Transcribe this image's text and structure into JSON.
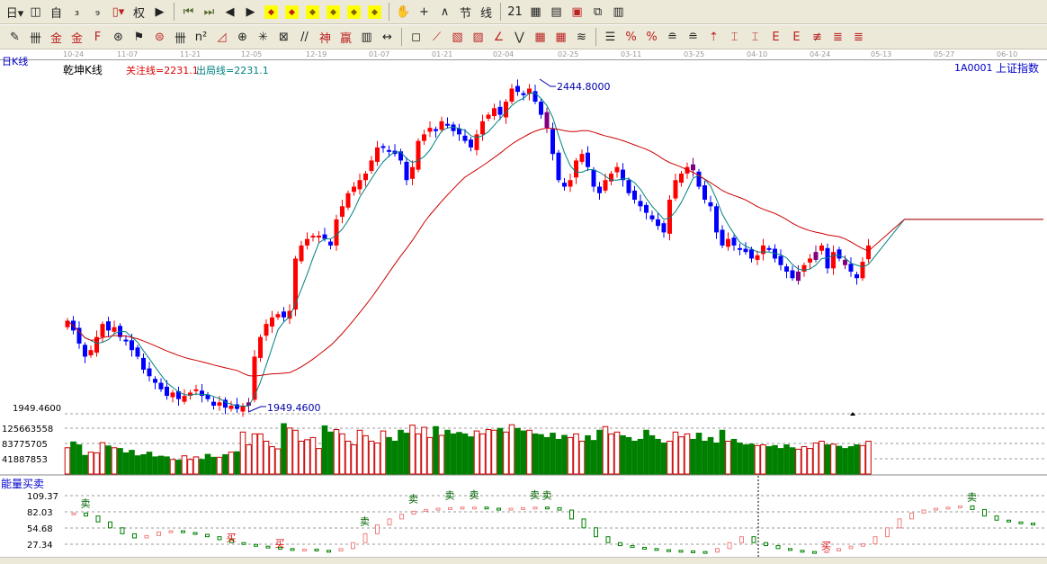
{
  "toolbar": {
    "row1": [
      {
        "icon": "period-selector",
        "glyph": "日▾"
      },
      {
        "icon": "history-icon",
        "glyph": "◫"
      },
      {
        "icon": "self-select-icon",
        "glyph": "自"
      },
      {
        "icon": "indicator-icon",
        "glyph": "₃"
      },
      {
        "icon": "indicator9-icon",
        "glyph": "₉"
      },
      {
        "icon": "candle-type-icon",
        "glyph": "▯▾"
      },
      {
        "icon": "weight-icon",
        "glyph": "权"
      },
      {
        "icon": "flag-icon",
        "glyph": "▶"
      },
      {
        "icon": "first-icon",
        "glyph": "⏮"
      },
      {
        "icon": "last-icon",
        "glyph": "⏭"
      },
      {
        "icon": "left-icon",
        "glyph": "◀"
      },
      {
        "icon": "right-icon",
        "glyph": "▶"
      },
      {
        "icon": "move-left-icon",
        "glyph": "◆"
      },
      {
        "icon": "move-right-icon",
        "glyph": "◆"
      },
      {
        "icon": "zoom-h-icon",
        "glyph": "◆"
      },
      {
        "icon": "zoom-in-icon",
        "glyph": "◆"
      },
      {
        "icon": "zoom-out-icon",
        "glyph": "◆"
      },
      {
        "icon": "zoom-v-icon",
        "glyph": "◆"
      },
      {
        "icon": "hand-icon",
        "glyph": "✋"
      },
      {
        "icon": "crosshair-icon",
        "glyph": "+"
      },
      {
        "icon": "draw-icon",
        "glyph": "∧"
      },
      {
        "icon": "section-icon",
        "glyph": "节"
      },
      {
        "icon": "chart-icon",
        "glyph": "线"
      },
      {
        "icon": "calendar-icon",
        "glyph": "21"
      },
      {
        "icon": "calculator-icon",
        "glyph": "▦"
      },
      {
        "icon": "notes-icon",
        "glyph": "▤"
      },
      {
        "icon": "save-icon",
        "glyph": "▣"
      },
      {
        "icon": "network-icon",
        "glyph": "⧉"
      },
      {
        "icon": "print-icon",
        "glyph": "▥"
      }
    ],
    "row2": [
      {
        "icon": "pen-icon",
        "glyph": "✎"
      },
      {
        "icon": "grid-icon",
        "glyph": "卌"
      },
      {
        "icon": "gold-icon",
        "glyph": "金"
      },
      {
        "icon": "gold2-icon",
        "glyph": "金"
      },
      {
        "icon": "f-line-icon",
        "glyph": "F"
      },
      {
        "icon": "spiral-icon",
        "glyph": "⊛"
      },
      {
        "icon": "marker-icon",
        "glyph": "⚑"
      },
      {
        "icon": "circle-icon",
        "glyph": "⊜"
      },
      {
        "icon": "lines-icon",
        "glyph": "卌"
      },
      {
        "icon": "n2-icon",
        "glyph": "n²"
      },
      {
        "icon": "angle-icon",
        "glyph": "◿"
      },
      {
        "icon": "target-icon",
        "glyph": "⊕"
      },
      {
        "icon": "star-icon",
        "glyph": "✳"
      },
      {
        "icon": "box-icon",
        "glyph": "⊠"
      },
      {
        "icon": "parallel-icon",
        "glyph": "//"
      },
      {
        "icon": "god-icon",
        "glyph": "神"
      },
      {
        "icon": "win-icon",
        "glyph": "赢"
      },
      {
        "icon": "ruler-icon",
        "glyph": "▥"
      },
      {
        "icon": "span-icon",
        "glyph": "↔"
      },
      {
        "icon": "rect-icon",
        "glyph": "◻"
      },
      {
        "icon": "fan-icon",
        "glyph": "⟋"
      },
      {
        "icon": "gann-icon",
        "glyph": "▧"
      },
      {
        "icon": "gann2-icon",
        "glyph": "▨"
      },
      {
        "icon": "angle2-icon",
        "glyph": "∠"
      },
      {
        "icon": "zigzag-icon",
        "glyph": "⋁"
      },
      {
        "icon": "table-icon",
        "glyph": "▦"
      },
      {
        "icon": "table2-icon",
        "glyph": "▦"
      },
      {
        "icon": "lines2-icon",
        "glyph": "≋"
      },
      {
        "icon": "list-icon",
        "glyph": "☰"
      },
      {
        "icon": "percent-icon",
        "glyph": "%"
      },
      {
        "icon": "percent2-icon",
        "glyph": "%"
      },
      {
        "icon": "equal-icon",
        "glyph": "≘"
      },
      {
        "icon": "equal2-icon",
        "glyph": "≘"
      },
      {
        "icon": "arrow-icon",
        "glyph": "⇡"
      },
      {
        "icon": "level-icon",
        "glyph": "⌶"
      },
      {
        "icon": "level2-icon",
        "glyph": "⌶"
      },
      {
        "icon": "e-icon",
        "glyph": "E"
      },
      {
        "icon": "e2-icon",
        "glyph": "E"
      },
      {
        "icon": "hit-icon",
        "glyph": "≢"
      },
      {
        "icon": "hit2-icon",
        "glyph": "≣"
      },
      {
        "icon": "hit3-icon",
        "glyph": "≣"
      }
    ]
  },
  "header": {
    "period": "日K线",
    "indicator": "乾坤K线",
    "focus_line": "关注线=2231.1",
    "exit_line": "出局线=2231.1",
    "code": "1A0001",
    "name": "上证指数"
  },
  "date_ticks": [
    "10-24",
    "11-07",
    "11-21",
    "12-05",
    "12-19",
    "01-07",
    "01-21",
    "02-04",
    "02-25",
    "03-11",
    "03-25",
    "04-10",
    "04-24",
    "05-13",
    "05-27",
    "06-10"
  ],
  "colors": {
    "up": "#ff0000",
    "down": "#0000ff",
    "signal": "#800080",
    "ma_fast": "#008080",
    "ma_slow": "#cc0000",
    "vol_up": "#cc0000",
    "vol_down": "#008000"
  },
  "chart_data": {
    "type": "candlestick",
    "price_axis": {
      "low_label": "1949.4600",
      "high_label": "2444.8000",
      "low": 1949.46,
      "high": 2444.8
    },
    "closes": [
      2085,
      2070,
      2050,
      2030,
      2040,
      2060,
      2080,
      2070,
      2075,
      2060,
      2055,
      2040,
      2030,
      2010,
      2000,
      1990,
      1980,
      1970,
      1975,
      1965,
      1970,
      1975,
      1980,
      1970,
      1965,
      1955,
      1960,
      1952,
      1955,
      1950,
      1955,
      1960,
      2030,
      2060,
      2080,
      2090,
      2095,
      2090,
      2100,
      2180,
      2200,
      2210,
      2215,
      2215,
      2210,
      2200,
      2240,
      2260,
      2280,
      2290,
      2300,
      2310,
      2330,
      2350,
      2350,
      2345,
      2340,
      2330,
      2300,
      2320,
      2360,
      2370,
      2380,
      2375,
      2390,
      2385,
      2375,
      2370,
      2360,
      2350,
      2370,
      2390,
      2400,
      2410,
      2400,
      2420,
      2440,
      2435,
      2430,
      2440,
      2420,
      2400,
      2380,
      2340,
      2300,
      2290,
      2300,
      2330,
      2340,
      2320,
      2290,
      2280,
      2300,
      2310,
      2320,
      2300,
      2280,
      2270,
      2260,
      2250,
      2240,
      2230,
      2220,
      2270,
      2300,
      2310,
      2320,
      2315,
      2290,
      2270,
      2260,
      2220,
      2200,
      2210,
      2200,
      2195,
      2190,
      2180,
      2185,
      2200,
      2195,
      2180,
      2170,
      2160,
      2150,
      2160,
      2170,
      2180,
      2190,
      2200,
      2165,
      2190,
      2180,
      2170,
      2160,
      2150,
      2175,
      2200
    ],
    "volume_axis": [
      "125663558",
      "83775705",
      "41887853"
    ],
    "volume": [
      72000000.0,
      88000000.0,
      80000000.0,
      51000000.0,
      60000000.0,
      58000000.0,
      86000000.0,
      77000000.0,
      72000000.0,
      70000000.0,
      58000000.0,
      65000000.0,
      50000000.0,
      53000000.0,
      60000000.0,
      47000000.0,
      49000000.0,
      47000000.0,
      40000000.0,
      38000000.0,
      50000000.0,
      40000000.0,
      47000000.0,
      40000000.0,
      54000000.0,
      46000000.0,
      46000000.0,
      53000000.0,
      60000000.0,
      61000000.0,
      115000000.0,
      80000000.0,
      110000000.0,
      110000000.0,
      90000000.0,
      75000000.0,
      69000000.0,
      138000000.0,
      126000000.0,
      120000000.0,
      90000000.0,
      94000000.0,
      100000000.0,
      70000000.0,
      132000000.0,
      115000000.0,
      122000000.0,
      110000000.0,
      90000000.0,
      80000000.0,
      120000000.0,
      105000000.0,
      90000000.0,
      85000000.0,
      118000000.0,
      100000000.0,
      90000000.0,
      120000000.0,
      112000000.0,
      134000000.0,
      110000000.0,
      128000000.0,
      100000000.0,
      130000000.0,
      106000000.0,
      120000000.0,
      110000000.0,
      114000000.0,
      110000000.0,
      102000000.0,
      118000000.0,
      110000000.0,
      122000000.0,
      120000000.0,
      125000000.0,
      115000000.0,
      135000000.0,
      125000000.0,
      118000000.0,
      120000000.0,
      110000000.0,
      108000000.0,
      100000000.0,
      112000000.0,
      95000000.0,
      106000000.0,
      100000000.0,
      110000000.0,
      90000000.0,
      105000000.0,
      92000000.0,
      120000000.0,
      130000000.0,
      110000000.0,
      115000000.0,
      105000000.0,
      100000000.0,
      90000000.0,
      95000000.0,
      120000000.0,
      105000000.0,
      95000000.0,
      85000000.0,
      90000000.0,
      115000000.0,
      102000000.0,
      110000000.0,
      95000000.0,
      112000000.0,
      90000000.0,
      100000000.0,
      85000000.0,
      120000000.0,
      90000000.0,
      95000000.0,
      85000000.0,
      80000000.0,
      82000000.0,
      78000000.0,
      80000000.0,
      75000000.0,
      78000000.0,
      70000000.0,
      80000000.0,
      72000000.0,
      68000000.0,
      75000000.0,
      70000000.0,
      85000000.0,
      90000000.0,
      80000000.0,
      82000000.0,
      76000000.0,
      70000000.0,
      75000000.0,
      80000000.0,
      78000000.0,
      90000000.0
    ],
    "energy_panel": {
      "title": "能量买卖",
      "axis": [
        "109.37",
        "82.03",
        "54.68",
        "27.34"
      ],
      "values": [
        80,
        75,
        65,
        55,
        45,
        38,
        42,
        48,
        50,
        47,
        44,
        40,
        35,
        30,
        27,
        24,
        22,
        20,
        18,
        19,
        17,
        16,
        20,
        30,
        45,
        60,
        70,
        78,
        83,
        86,
        88,
        89,
        90,
        90,
        88,
        87,
        88,
        89,
        90,
        89,
        85,
        70,
        55,
        40,
        30,
        25,
        22,
        20,
        18,
        17,
        16,
        15,
        14,
        20,
        30,
        40,
        30,
        25,
        20,
        17,
        15,
        14,
        16,
        20,
        24,
        28,
        40,
        55,
        70,
        80,
        85,
        88,
        90,
        92,
        86,
        75,
        68,
        65,
        63,
        62
      ],
      "sell_label": "卖",
      "buy_label": "买",
      "sell_idx": [
        1,
        24,
        28,
        31,
        33,
        38,
        39,
        74
      ],
      "buy_idx": [
        13,
        17,
        62
      ]
    }
  }
}
